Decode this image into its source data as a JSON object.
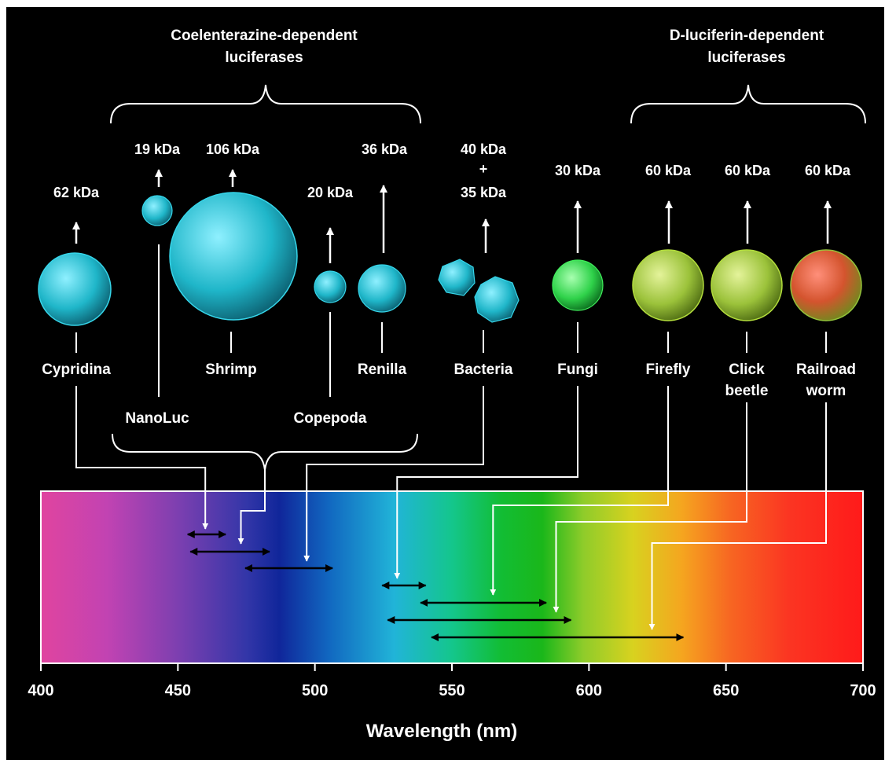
{
  "groups": {
    "coelenterazine": {
      "line1": "Coelenterazine-dependent",
      "line2": "luciferases"
    },
    "d_luciferin": {
      "line1": "D-luciferin-dependent",
      "line2": "luciferases"
    }
  },
  "organisms": [
    {
      "key": "cypridina",
      "name1": "Cypridina",
      "name2": "",
      "mass1": "62 kDa",
      "mass2": "",
      "mass3": "",
      "color": "#1fb6c9",
      "peak_nm": 460
    },
    {
      "key": "nanoluc",
      "name1": "NanoLuc",
      "name2": "",
      "mass1": "19 kDa",
      "mass2": "",
      "mass3": "",
      "color": "#1fb6c9",
      "peak_nm": 460
    },
    {
      "key": "shrimp",
      "name1": "Shrimp",
      "name2": "",
      "mass1": "106 kDa",
      "mass2": "",
      "mass3": "",
      "color": "#1fb6c9",
      "peak_nm": 460
    },
    {
      "key": "copepoda",
      "name1": "Copepoda",
      "name2": "",
      "mass1": "20 kDa",
      "mass2": "",
      "mass3": "",
      "color": "#1fb6c9",
      "peak_nm": 473
    },
    {
      "key": "renilla",
      "name1": "Renilla",
      "name2": "",
      "mass1": "36 kDa",
      "mass2": "",
      "mass3": "",
      "color": "#1fb6c9",
      "peak_nm": 480
    },
    {
      "key": "bacteria",
      "name1": "Bacteria",
      "name2": "",
      "mass1": "40 kDa",
      "mass2": "+",
      "mass3": "35 kDa",
      "color": "#1fb6c9",
      "peak_nm": 497
    },
    {
      "key": "fungi",
      "name1": "Fungi",
      "name2": "",
      "mass1": "30 kDa",
      "mass2": "",
      "mass3": "",
      "color": "#2fd24a",
      "peak_nm": 530
    },
    {
      "key": "firefly",
      "name1": "Firefly",
      "name2": "",
      "mass1": "60 kDa",
      "mass2": "",
      "mass3": "",
      "color": "#9bc23a",
      "peak_nm": 565
    },
    {
      "key": "click_beetle",
      "name1": "Click",
      "name2": "beetle",
      "mass1": "60 kDa",
      "mass2": "",
      "mass3": "",
      "color": "#9bc23a",
      "peak_nm": 588
    },
    {
      "key": "railroad_worm",
      "name1": "Railroad",
      "name2": "worm",
      "mass1": "60 kDa",
      "mass2": "",
      "mass3": "",
      "color": "#c8643a",
      "peak_nm": 623
    }
  ],
  "emission_ranges_nm": [
    [
      453,
      468
    ],
    [
      454,
      484
    ],
    [
      474,
      507
    ],
    [
      524,
      541
    ],
    [
      538,
      585
    ],
    [
      526,
      594
    ],
    [
      542,
      635
    ]
  ],
  "axis": {
    "min": 400,
    "max": 700,
    "ticks": [
      "400",
      "450",
      "500",
      "550",
      "600",
      "650",
      "700"
    ],
    "label": "Wavelength (nm)"
  }
}
